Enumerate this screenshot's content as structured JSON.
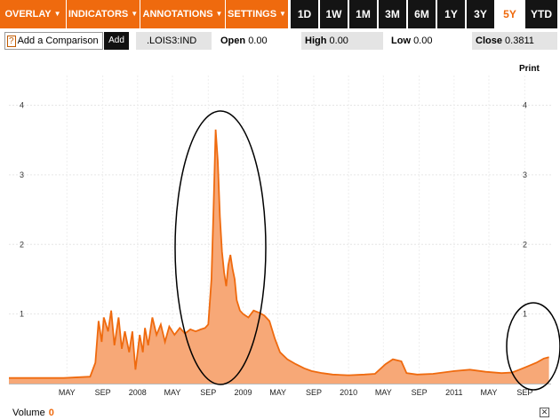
{
  "toolbar": {
    "menus": [
      {
        "label": "OVERLAY"
      },
      {
        "label": "INDICATORS"
      },
      {
        "label": "ANNOTATIONS"
      },
      {
        "label": "SETTINGS"
      }
    ],
    "ranges": [
      {
        "label": "1D",
        "active": false
      },
      {
        "label": "1W",
        "active": false
      },
      {
        "label": "1M",
        "active": false
      },
      {
        "label": "3M",
        "active": false
      },
      {
        "label": "6M",
        "active": false
      },
      {
        "label": "1Y",
        "active": false
      },
      {
        "label": "3Y",
        "active": false
      },
      {
        "label": "5Y",
        "active": true
      },
      {
        "label": "YTD",
        "active": false
      }
    ],
    "caret": "▼"
  },
  "infobar": {
    "help_marker": "?",
    "compare_placeholder": "Add a Comparison",
    "add_label": "Add",
    "ticker": ".LOIS3:IND",
    "open_label": "Open",
    "open_value": "0.00",
    "high_label": "High",
    "high_value": "0.00",
    "low_label": "Low",
    "low_value": "0.00",
    "close_label": "Close",
    "close_value": "0.3811"
  },
  "print_label": "Print",
  "footer": {
    "volume_label": "Volume",
    "volume_value": "0",
    "close_icon": "✕"
  },
  "colors": {
    "accent": "#ef6a0e",
    "area_fill": "#f7a877",
    "line": "#ef6a0e",
    "range_bg": "#141414"
  },
  "chart_data": {
    "type": "area",
    "ylim": [
      0,
      4.3
    ],
    "y_ticks": [
      1,
      2,
      3,
      4
    ],
    "x_ticks": [
      "MAY",
      "SEP",
      "2008",
      "MAY",
      "SEP",
      "2009",
      "MAY",
      "SEP",
      "2010",
      "MAY",
      "SEP",
      "2011",
      "MAY",
      "SEP"
    ],
    "x_tick_pos": [
      2007.33,
      2007.67,
      2008.0,
      2008.33,
      2008.67,
      2009.0,
      2009.33,
      2009.67,
      2010.0,
      2010.33,
      2010.67,
      2011.0,
      2011.33,
      2011.67
    ],
    "xlim": [
      2006.78,
      2011.92
    ],
    "series": [
      {
        "x": [
          2006.78,
          2007.0,
          2007.3,
          2007.55,
          2007.6,
          2007.63,
          2007.66,
          2007.68,
          2007.72,
          2007.75,
          2007.78,
          2007.82,
          2007.85,
          2007.88,
          2007.92,
          2007.95,
          2007.98,
          2008.02,
          2008.05,
          2008.07,
          2008.1,
          2008.14,
          2008.18,
          2008.22,
          2008.26,
          2008.3,
          2008.35,
          2008.4,
          2008.45,
          2008.5,
          2008.55,
          2008.6,
          2008.64,
          2008.67,
          2008.7,
          2008.72,
          2008.74,
          2008.76,
          2008.78,
          2008.8,
          2008.82,
          2008.84,
          2008.86,
          2008.88,
          2008.9,
          2008.92,
          2008.94,
          2008.97,
          2009.0,
          2009.05,
          2009.1,
          2009.15,
          2009.2,
          2009.25,
          2009.3,
          2009.35,
          2009.42,
          2009.5,
          2009.58,
          2009.65,
          2009.75,
          2009.85,
          2010.0,
          2010.15,
          2010.25,
          2010.35,
          2010.42,
          2010.5,
          2010.55,
          2010.65,
          2010.8,
          2011.0,
          2011.15,
          2011.3,
          2011.45,
          2011.55,
          2011.62,
          2011.7,
          2011.78,
          2011.85,
          2011.9
        ],
        "values": [
          0.08,
          0.08,
          0.08,
          0.1,
          0.3,
          0.9,
          0.6,
          0.95,
          0.75,
          1.05,
          0.55,
          0.95,
          0.5,
          0.75,
          0.45,
          0.75,
          0.2,
          0.7,
          0.45,
          0.8,
          0.55,
          0.95,
          0.7,
          0.85,
          0.6,
          0.82,
          0.7,
          0.8,
          0.72,
          0.78,
          0.75,
          0.78,
          0.8,
          0.85,
          1.5,
          2.5,
          3.65,
          3.2,
          2.4,
          1.9,
          1.6,
          1.4,
          1.7,
          1.85,
          1.65,
          1.5,
          1.2,
          1.05,
          1.0,
          0.95,
          1.05,
          1.02,
          0.98,
          0.9,
          0.65,
          0.45,
          0.35,
          0.28,
          0.22,
          0.18,
          0.15,
          0.13,
          0.12,
          0.13,
          0.14,
          0.28,
          0.35,
          0.32,
          0.15,
          0.13,
          0.14,
          0.18,
          0.2,
          0.17,
          0.15,
          0.16,
          0.2,
          0.25,
          0.3,
          0.36,
          0.38
        ]
      }
    ]
  }
}
